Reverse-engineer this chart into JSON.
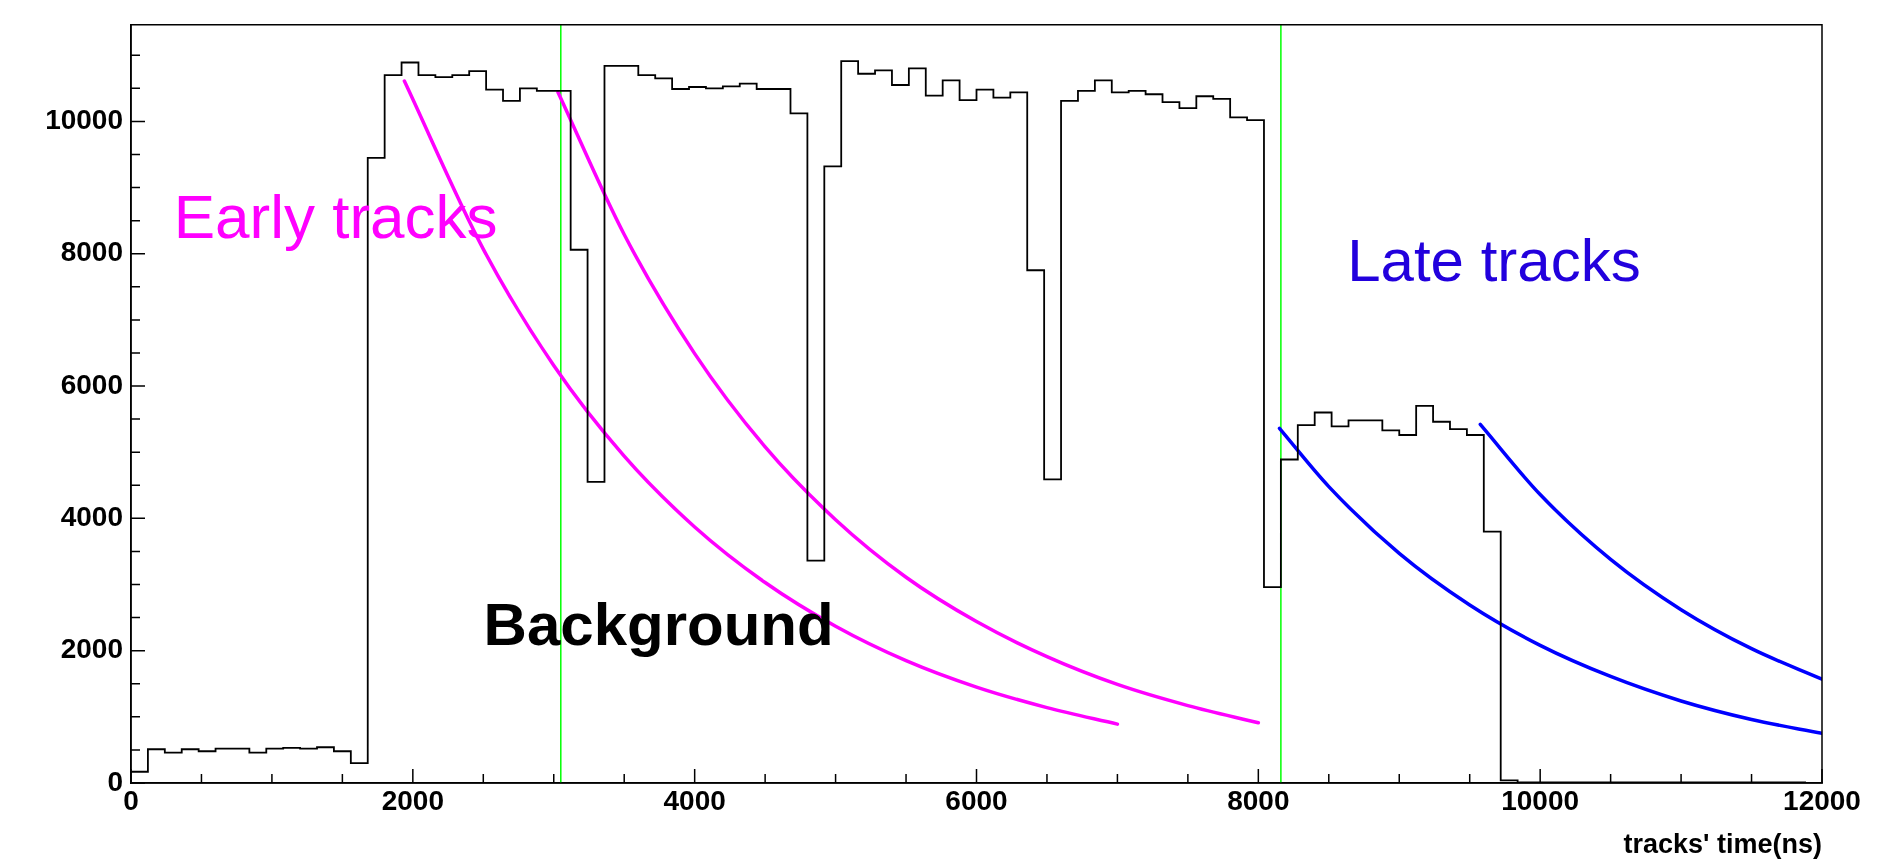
{
  "chart_data": {
    "type": "histogram",
    "xlabel": "tracks' time(ns)",
    "bins": [
      0,
      120,
      240,
      360,
      480,
      600,
      720,
      840,
      960,
      1080,
      1200,
      1320,
      1440,
      1560,
      1680,
      1800,
      1920,
      2040,
      2160,
      2280,
      2400,
      2520,
      2640,
      2760,
      2880,
      3000,
      3120,
      3240,
      3360,
      3480,
      3600,
      3720,
      3840,
      3960,
      4080,
      4200,
      4320,
      4440,
      4560,
      4680,
      4800,
      4920,
      5040,
      5160,
      5280,
      5400,
      5520,
      5640,
      5760,
      5880,
      6000,
      6120,
      6240,
      6360,
      6480,
      6600,
      6720,
      6840,
      6960,
      7080,
      7200,
      7320,
      7440,
      7560,
      7680,
      7800,
      7920,
      8040,
      8160,
      8280,
      8400,
      8520,
      8640,
      8760,
      8880,
      9000,
      9120,
      9240,
      9360,
      9480,
      9600,
      9720,
      9840,
      9960,
      10080,
      10200,
      10320,
      10440,
      10560,
      10680,
      10800,
      10920,
      11040,
      11160,
      11280,
      11400,
      11520,
      11640,
      11760,
      11880,
      12000
    ],
    "series": [
      {
        "type": "histogram",
        "color": "#000000",
        "values": [
          170,
          510,
          460,
          510,
          480,
          520,
          520,
          460,
          520,
          530,
          520,
          540,
          480,
          300,
          9450,
          10700,
          10890,
          10700,
          10670,
          10700,
          10760,
          10480,
          10310,
          10500,
          10460,
          10460,
          8060,
          4550,
          10840,
          10840,
          10700,
          10650,
          10490,
          10520,
          10500,
          10530,
          10570,
          10490,
          10490,
          10120,
          3360,
          9320,
          10910,
          10720,
          10770,
          10550,
          10800,
          10390,
          10620,
          10320,
          10480,
          10360,
          10440,
          7750,
          4590,
          10310,
          10460,
          10620,
          10440,
          10460,
          10410,
          10290,
          10200,
          10380,
          10340,
          10060,
          10020,
          2960,
          4890,
          5410,
          5600,
          5390,
          5480,
          5480,
          5330,
          5260,
          5700,
          5460,
          5350,
          5260,
          3800,
          40,
          10,
          10,
          10,
          10,
          10,
          10,
          10,
          10,
          10,
          10,
          10,
          10,
          10,
          10,
          10,
          10,
          10,
          0
        ]
      },
      {
        "type": "line",
        "color": "#ff00ff",
        "x": [
          1940,
          2500,
          3000,
          3500,
          4000,
          4500,
          5000,
          5500,
          6000,
          6500,
          7000
        ],
        "values": [
          10610,
          8070,
          6310,
          4940,
          3870,
          3030,
          2370,
          1850,
          1450,
          1140,
          890
        ]
      },
      {
        "type": "line",
        "color": "#ff00ff",
        "x": [
          3030,
          3500,
          4000,
          4500,
          5000,
          5500,
          6000,
          6500,
          7000,
          7500,
          8000
        ],
        "values": [
          10440,
          8290,
          6490,
          5080,
          3980,
          3110,
          2440,
          1910,
          1490,
          1170,
          910
        ]
      },
      {
        "type": "line",
        "color": "#0000ff",
        "x": [
          8150,
          8500,
          9000,
          9500,
          10000,
          10500,
          11000,
          11500,
          12000
        ],
        "values": [
          5360,
          4480,
          3470,
          2690,
          2080,
          1610,
          1240,
          960,
          750
        ]
      },
      {
        "type": "line",
        "color": "#0000ff",
        "x": [
          9575,
          10000,
          10500,
          11000,
          11500,
          12000
        ],
        "values": [
          5420,
          4360,
          3380,
          2620,
          2030,
          1570
        ]
      }
    ],
    "xlim": [
      0,
      12000
    ],
    "xticks": [
      0,
      {
        "value": 500,
        "label": null
      },
      {
        "value": 1000,
        "label": null
      },
      {
        "value": 1500,
        "label": null
      },
      2000,
      {
        "value": 2500,
        "label": null
      },
      {
        "value": 3000,
        "label": null
      },
      {
        "value": 3500,
        "label": null
      },
      4000,
      {
        "value": 4500,
        "label": null
      },
      {
        "value": 5000,
        "label": null
      },
      {
        "value": 5500,
        "label": null
      },
      6000,
      {
        "value": 6500,
        "label": null
      },
      {
        "value": 7000,
        "label": null
      },
      {
        "value": 7500,
        "label": null
      },
      8000,
      {
        "value": 8500,
        "label": null
      },
      {
        "value": 9000,
        "label": null
      },
      {
        "value": 9500,
        "label": null
      },
      10000,
      {
        "value": 10500,
        "label": null
      },
      {
        "value": 11000,
        "label": null
      },
      {
        "value": 11500,
        "label": null
      },
      12000
    ],
    "ylim": [
      0,
      11460
    ],
    "yticks": [
      0,
      {
        "value": 500,
        "label": null
      },
      {
        "value": 1000,
        "label": null
      },
      {
        "value": 1500,
        "label": null
      },
      2000,
      {
        "value": 2500,
        "label": null
      },
      {
        "value": 3000,
        "label": null
      },
      {
        "value": 3500,
        "label": null
      },
      4000,
      {
        "value": 4500,
        "label": null
      },
      {
        "value": 5000,
        "label": null
      },
      {
        "value": 5500,
        "label": null
      },
      6000,
      {
        "value": 6500,
        "label": null
      },
      {
        "value": 7000,
        "label": null
      },
      {
        "value": 7500,
        "label": null
      },
      8000,
      {
        "value": 8500,
        "label": null
      },
      {
        "value": 9000,
        "label": null
      },
      {
        "value": 9500,
        "label": null
      },
      10000,
      {
        "value": 10500,
        "label": null
      },
      {
        "value": 11000,
        "label": null
      }
    ],
    "ref_lines": [
      {
        "axis": "x",
        "value": 3050,
        "color": "#00ff00"
      },
      {
        "axis": "x",
        "value": 8160,
        "color": "#00ff00"
      }
    ],
    "annotations": [
      "Early tracks",
      "Late tracks",
      "Background"
    ]
  }
}
